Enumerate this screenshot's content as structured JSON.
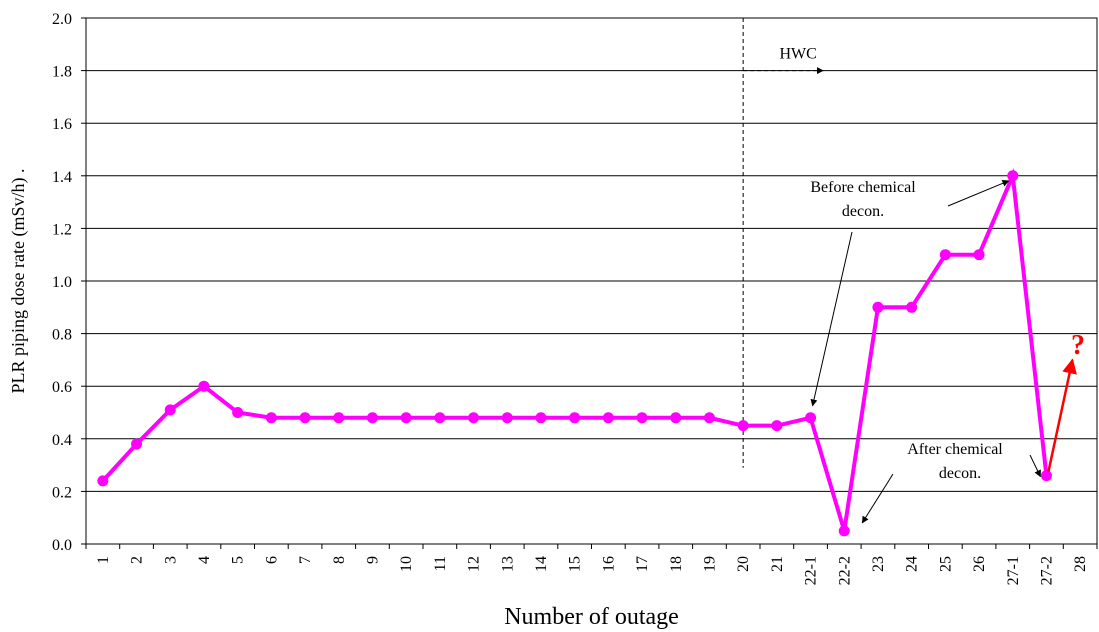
{
  "chart_data": {
    "type": "line",
    "title": "",
    "xlabel": "Number of outage",
    "ylabel": "PLR piping dose rate (mSv/h) .",
    "ylim": [
      0,
      2.0
    ],
    "yticks": [
      "0.0",
      "0.2",
      "0.4",
      "0.6",
      "0.8",
      "1.0",
      "1.2",
      "1.4",
      "1.6",
      "1.8",
      "2.0"
    ],
    "categories": [
      "1",
      "2",
      "3",
      "4",
      "5",
      "6",
      "7",
      "8",
      "9",
      "10",
      "11",
      "12",
      "13",
      "14",
      "15",
      "16",
      "17",
      "18",
      "19",
      "20",
      "21",
      "22-1",
      "22-2",
      "23",
      "24",
      "25",
      "26",
      "27-1",
      "27-2",
      "28"
    ],
    "grid": "horizontal",
    "series": [
      {
        "color": "#ff00ff",
        "values": [
          0.24,
          0.38,
          0.51,
          0.6,
          0.5,
          0.48,
          0.48,
          0.48,
          0.48,
          0.48,
          0.48,
          0.48,
          0.48,
          0.48,
          0.48,
          0.48,
          0.48,
          0.48,
          0.48,
          0.45,
          0.45,
          0.48,
          0.05,
          0.9,
          0.9,
          1.1,
          1.1,
          1.4,
          0.26,
          null
        ]
      }
    ],
    "annotations": {
      "hwc": {
        "text": "HWC",
        "at_category": "20"
      },
      "before": {
        "line1": "Before chemical",
        "line2": "decon."
      },
      "after": {
        "line1": "After chemical",
        "line2": "decon."
      },
      "question": {
        "text": "?",
        "color": "#ff0000"
      }
    }
  }
}
